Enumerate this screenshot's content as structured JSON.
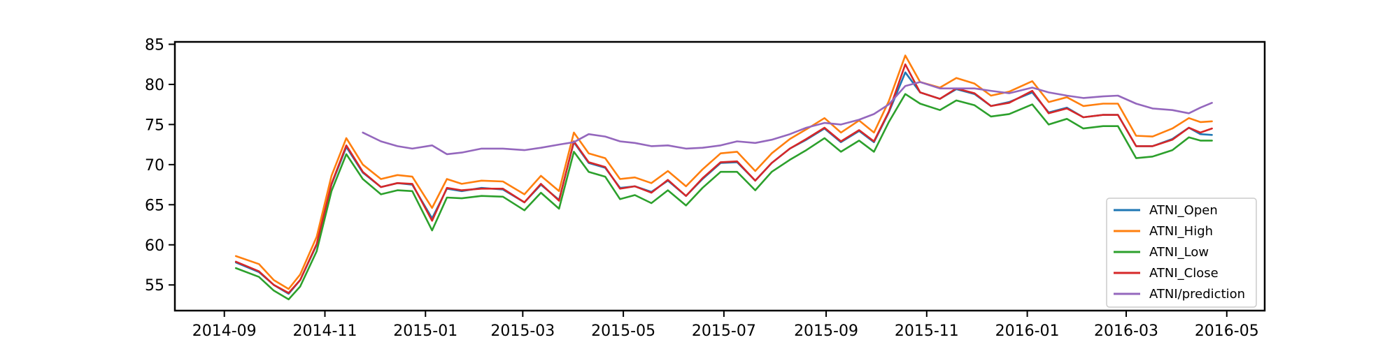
{
  "chart_data": {
    "type": "line",
    "title": "",
    "xlabel": "",
    "ylabel": "",
    "xlim": [
      "2014-08-02",
      "2016-05-24"
    ],
    "ylim": [
      51.8,
      85.3
    ],
    "grid": false,
    "legend_placement": "lower-right",
    "x_ticks": [
      "2014-09",
      "2014-11",
      "2015-01",
      "2015-03",
      "2015-05",
      "2015-07",
      "2015-09",
      "2015-11",
      "2016-01",
      "2016-03",
      "2016-05"
    ],
    "y_ticks": [
      55,
      60,
      65,
      70,
      75,
      80,
      85
    ],
    "x": [
      "2014-09-08",
      "2014-09-22",
      "2014-10-01",
      "2014-10-10",
      "2014-10-17",
      "2014-10-27",
      "2014-11-05",
      "2014-11-14",
      "2014-11-24",
      "2014-12-05",
      "2014-12-15",
      "2014-12-24",
      "2015-01-05",
      "2015-01-14",
      "2015-01-23",
      "2015-02-04",
      "2015-02-17",
      "2015-03-02",
      "2015-03-12",
      "2015-03-23",
      "2015-04-01",
      "2015-04-10",
      "2015-04-20",
      "2015-04-29",
      "2015-05-08",
      "2015-05-18",
      "2015-05-28",
      "2015-06-08",
      "2015-06-18",
      "2015-06-29",
      "2015-07-09",
      "2015-07-20",
      "2015-07-30",
      "2015-08-10",
      "2015-08-20",
      "2015-08-31",
      "2015-09-10",
      "2015-09-21",
      "2015-09-30",
      "2015-10-09",
      "2015-10-19",
      "2015-10-28",
      "2015-11-09",
      "2015-11-19",
      "2015-11-30",
      "2015-12-10",
      "2015-12-21",
      "2016-01-04",
      "2016-01-14",
      "2016-01-25",
      "2016-02-04",
      "2016-02-16",
      "2016-02-25",
      "2016-03-07",
      "2016-03-17",
      "2016-03-29",
      "2016-04-08",
      "2016-04-15",
      "2016-04-22"
    ],
    "series": [
      {
        "name": "ATNI_Open",
        "color": "#1f77b4",
        "values": [
          57.8,
          56.6,
          55.0,
          53.9,
          55.6,
          60.0,
          67.5,
          72.2,
          69.0,
          67.2,
          67.7,
          67.5,
          63.3,
          67.0,
          66.7,
          67.1,
          66.9,
          65.3,
          67.5,
          65.6,
          72.8,
          70.2,
          69.6,
          67.1,
          67.3,
          66.6,
          68.0,
          66.1,
          68.2,
          70.2,
          70.3,
          68.0,
          70.2,
          72.0,
          73.1,
          74.5,
          72.8,
          74.2,
          72.8,
          76.5,
          81.5,
          79.0,
          78.2,
          79.4,
          78.8,
          77.3,
          77.8,
          79.0,
          76.5,
          77.1,
          75.9,
          76.2,
          76.2,
          72.3,
          72.3,
          73.2,
          74.6,
          73.8,
          73.7
        ]
      },
      {
        "name": "ATNI_High",
        "color": "#ff7f0e",
        "values": [
          58.6,
          57.6,
          55.6,
          54.5,
          56.3,
          61.0,
          68.6,
          73.3,
          70.0,
          68.2,
          68.7,
          68.5,
          64.6,
          68.2,
          67.6,
          68.0,
          67.9,
          66.3,
          68.6,
          66.7,
          74.0,
          71.4,
          70.8,
          68.2,
          68.4,
          67.7,
          69.2,
          67.3,
          69.4,
          71.4,
          71.6,
          69.2,
          71.4,
          73.2,
          74.4,
          75.8,
          74.0,
          75.5,
          74.0,
          77.9,
          83.6,
          80.3,
          79.6,
          80.8,
          80.1,
          78.6,
          79.1,
          80.4,
          77.8,
          78.4,
          77.3,
          77.6,
          77.6,
          73.6,
          73.5,
          74.5,
          75.8,
          75.3,
          75.4
        ]
      },
      {
        "name": "ATNI_Low",
        "color": "#2ca02c",
        "values": [
          57.1,
          56.0,
          54.3,
          53.2,
          54.8,
          59.2,
          66.7,
          71.3,
          68.2,
          66.3,
          66.8,
          66.7,
          61.8,
          65.9,
          65.8,
          66.1,
          66.0,
          64.3,
          66.5,
          64.5,
          71.6,
          69.1,
          68.5,
          65.7,
          66.2,
          65.2,
          66.8,
          64.9,
          67.1,
          69.1,
          69.1,
          66.8,
          69.1,
          70.6,
          71.8,
          73.3,
          71.6,
          73.0,
          71.6,
          75.3,
          78.8,
          77.6,
          76.8,
          78.0,
          77.4,
          76.0,
          76.3,
          77.5,
          75.0,
          75.7,
          74.5,
          74.8,
          74.8,
          70.8,
          71.0,
          71.8,
          73.4,
          73.0,
          73.0
        ]
      },
      {
        "name": "ATNI_Close",
        "color": "#d62728",
        "values": [
          57.9,
          56.7,
          55.0,
          54.0,
          55.6,
          60.1,
          67.6,
          72.4,
          69.1,
          67.2,
          67.7,
          67.6,
          63.0,
          67.1,
          66.8,
          67.0,
          67.0,
          65.3,
          67.6,
          65.5,
          72.9,
          70.3,
          69.7,
          67.0,
          67.3,
          66.5,
          68.1,
          66.1,
          68.3,
          70.3,
          70.4,
          68.0,
          70.2,
          72.0,
          73.2,
          74.6,
          72.9,
          74.3,
          72.9,
          76.6,
          82.5,
          79.0,
          78.2,
          79.5,
          78.9,
          77.3,
          77.7,
          79.2,
          76.4,
          77.0,
          75.9,
          76.2,
          76.2,
          72.3,
          72.3,
          73.1,
          74.6,
          74.0,
          74.5
        ]
      },
      {
        "name": "ATNI/prediction",
        "color": "#9467bd",
        "values": [
          null,
          null,
          null,
          null,
          null,
          null,
          null,
          null,
          74.0,
          72.9,
          72.3,
          72.0,
          72.4,
          71.3,
          71.5,
          72.0,
          72.0,
          71.8,
          72.1,
          72.5,
          72.8,
          73.8,
          73.5,
          72.9,
          72.7,
          72.3,
          72.4,
          72.0,
          72.1,
          72.4,
          72.9,
          72.7,
          73.1,
          73.8,
          74.6,
          75.2,
          75.0,
          75.6,
          76.3,
          77.5,
          79.8,
          80.3,
          79.5,
          79.5,
          79.5,
          79.2,
          78.9,
          79.6,
          79.0,
          78.6,
          78.3,
          78.5,
          78.6,
          77.6,
          77.0,
          76.8,
          76.4,
          77.1,
          77.7
        ]
      }
    ]
  }
}
